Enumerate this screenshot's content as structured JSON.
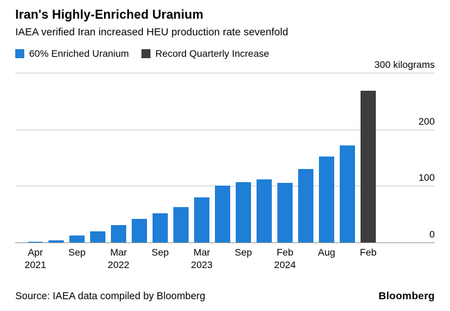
{
  "header": {
    "title": "Iran's Highly-Enriched Uranium",
    "subtitle": "IAEA verified Iran increased HEU production rate sevenfold"
  },
  "legend": [
    {
      "label": "60% Enriched Uranium",
      "color": "#1f7ed6"
    },
    {
      "label": "Record Quarterly Increase",
      "color": "#3d3d3d"
    }
  ],
  "footer": {
    "source": "Source: IAEA data compiled by Bloomberg",
    "brand": "Bloomberg"
  },
  "chart_data": {
    "type": "bar",
    "title": "Iran's Highly-Enriched Uranium",
    "subtitle": "IAEA verified Iran increased HEU production rate sevenfold",
    "unit": "kilograms",
    "ylim": [
      0,
      300
    ],
    "grid": true,
    "legend_position": "top",
    "yticks": [
      {
        "value": 0,
        "label": "0"
      },
      {
        "value": 100,
        "label": "100"
      },
      {
        "value": 200,
        "label": "200"
      },
      {
        "value": 300,
        "label": "300 kilograms"
      }
    ],
    "series": [
      {
        "name": "60% Enriched Uranium",
        "color": "#1f7ed6"
      },
      {
        "name": "Record Quarterly Increase",
        "color": "#3d3d3d"
      }
    ],
    "points": [
      {
        "label": [
          "Apr",
          "2021"
        ],
        "value": 1,
        "series": 0
      },
      {
        "label": null,
        "value": 4,
        "series": 0
      },
      {
        "label": [
          "Sep"
        ],
        "value": 12,
        "series": 0
      },
      {
        "label": null,
        "value": 20,
        "series": 0
      },
      {
        "label": [
          "Mar",
          "2022"
        ],
        "value": 31,
        "series": 0
      },
      {
        "label": null,
        "value": 42,
        "series": 0
      },
      {
        "label": [
          "Sep"
        ],
        "value": 52,
        "series": 0
      },
      {
        "label": null,
        "value": 62,
        "series": 0
      },
      {
        "label": [
          "Mar",
          "2023"
        ],
        "value": 80,
        "series": 0
      },
      {
        "label": null,
        "value": 100,
        "series": 0
      },
      {
        "label": [
          "Sep"
        ],
        "value": 106,
        "series": 0
      },
      {
        "label": null,
        "value": 112,
        "series": 0
      },
      {
        "label": [
          "Feb",
          "2024"
        ],
        "value": 105,
        "series": 0
      },
      {
        "label": null,
        "value": 130,
        "series": 0
      },
      {
        "label": [
          "Aug"
        ],
        "value": 152,
        "series": 0
      },
      {
        "label": null,
        "value": 171,
        "series": 0
      },
      {
        "label": [
          "Feb"
        ],
        "value": 268,
        "series": 1
      }
    ]
  }
}
